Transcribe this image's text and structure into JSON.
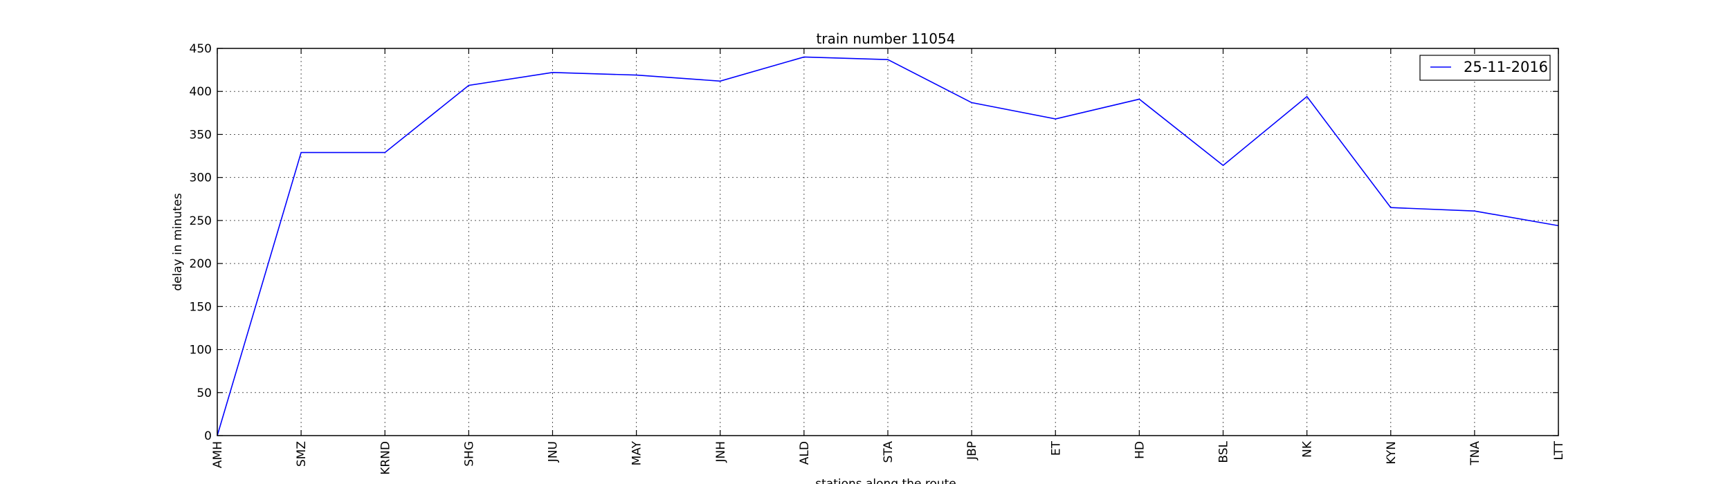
{
  "chart_data": {
    "type": "line",
    "title": "train number 11054",
    "xlabel": "stations along the route",
    "ylabel": "delay in minutes",
    "categories": [
      "AMH",
      "SMZ",
      "KRND",
      "SHG",
      "JNU",
      "MAY",
      "JNH",
      "ALD",
      "STA",
      "JBP",
      "ET",
      "HD",
      "BSL",
      "NK",
      "KYN",
      "TNA",
      "LTT"
    ],
    "series": [
      {
        "name": "25-11-2016",
        "color": "#0000ff",
        "values": [
          0,
          329,
          329,
          407,
          422,
          419,
          412,
          440,
          437,
          387,
          368,
          391,
          314,
          394,
          265,
          261,
          244
        ]
      }
    ],
    "ylim": [
      0,
      450
    ],
    "yticks": [
      0,
      50,
      100,
      150,
      200,
      250,
      300,
      350,
      400,
      450
    ],
    "grid": true,
    "legend_position": "top-right"
  }
}
